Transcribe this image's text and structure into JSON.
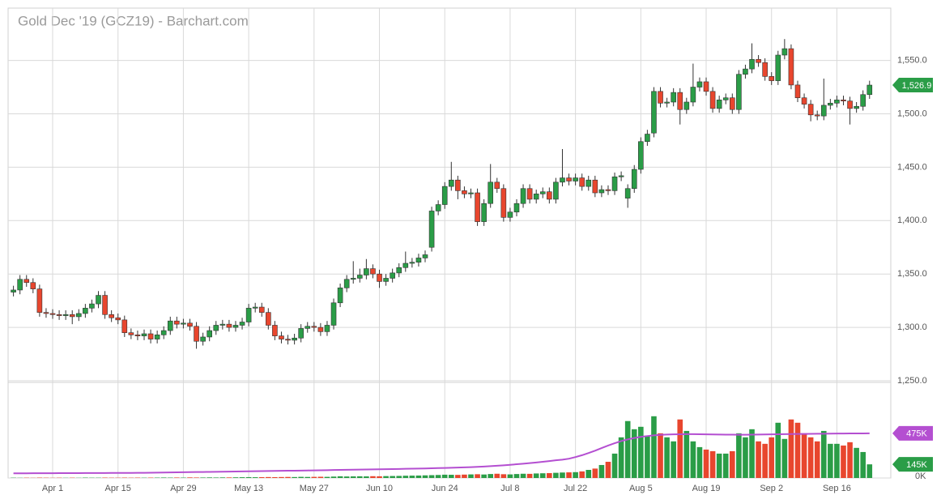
{
  "chart_data": {
    "type": "candlestick",
    "title": "Gold Dec '19 (GCZ19) - Barchart.com",
    "categories": [
      null,
      null,
      null,
      null,
      null,
      null,
      "Apr 1",
      null,
      null,
      null,
      null,
      null,
      null,
      null,
      null,
      null,
      "Apr 15",
      null,
      null,
      null,
      null,
      null,
      null,
      null,
      null,
      null,
      "Apr 29",
      null,
      null,
      null,
      null,
      null,
      null,
      null,
      null,
      null,
      "May 13",
      null,
      null,
      null,
      null,
      null,
      null,
      null,
      null,
      null,
      "May 27",
      null,
      null,
      null,
      null,
      null,
      null,
      null,
      null,
      null,
      "Jun 10",
      null,
      null,
      null,
      null,
      null,
      null,
      null,
      null,
      null,
      "Jun 24",
      null,
      null,
      null,
      null,
      null,
      null,
      null,
      null,
      null,
      "Jul 8",
      null,
      null,
      null,
      null,
      null,
      null,
      null,
      null,
      null,
      "Jul 22",
      null,
      null,
      null,
      null,
      null,
      null,
      null,
      null,
      null,
      "Aug 5",
      null,
      null,
      null,
      null,
      null,
      null,
      null,
      null,
      null,
      "Aug 19",
      null,
      null,
      null,
      null,
      null,
      null,
      null,
      null,
      null,
      "Sep 2",
      null,
      null,
      null,
      null,
      null,
      null,
      null,
      null,
      null,
      "Sep 16",
      null,
      null,
      null,
      null,
      null
    ],
    "open": [
      1333,
      1335,
      1345,
      1342,
      1336,
      1314,
      1313,
      1312,
      1311,
      1312,
      1310,
      1313,
      1318,
      1322,
      1330,
      1312,
      1309,
      1307,
      1295,
      1293,
      1292,
      1294,
      1289,
      1293,
      1297,
      1306,
      1303,
      1304,
      1301,
      1287,
      1291,
      1297,
      1302,
      1303,
      1300,
      1302,
      1305,
      1318,
      1319,
      1314,
      1302,
      1292,
      1289,
      1288,
      1290,
      1299,
      1301,
      1300,
      1296,
      1302,
      1323,
      1337,
      1345,
      1346,
      1349,
      1355,
      1350,
      1343,
      1346,
      1351,
      1356,
      1360,
      1361,
      1365,
      1375,
      1409,
      1415,
      1432,
      1438,
      1428,
      1425,
      1426,
      1399,
      1416,
      1436,
      1430,
      1403,
      1408,
      1416,
      1430,
      1420,
      1425,
      1427,
      1420,
      1436,
      1440,
      1437,
      1440,
      1432,
      1438,
      1426,
      1429,
      1428,
      1441,
      1421,
      1430,
      1448,
      1474,
      1482,
      1521,
      1510,
      1511,
      1520,
      1504,
      1511,
      1525,
      1530,
      1521,
      1505,
      1513,
      1515,
      1504,
      1537,
      1542,
      1551,
      1548,
      1535,
      1531,
      1555,
      1561,
      1527,
      1515,
      1509,
      1499,
      1498,
      1508,
      1510,
      1513,
      1512,
      1505,
      1507,
      1518
    ],
    "high": [
      1339,
      1349,
      1349,
      1346,
      1340,
      1318,
      1317,
      1316,
      1316,
      1316,
      1317,
      1322,
      1326,
      1334,
      1334,
      1316,
      1313,
      1311,
      1299,
      1297,
      1298,
      1298,
      1297,
      1301,
      1310,
      1310,
      1308,
      1308,
      1305,
      1295,
      1301,
      1306,
      1307,
      1307,
      1306,
      1309,
      1322,
      1323,
      1323,
      1318,
      1306,
      1296,
      1293,
      1294,
      1303,
      1305,
      1305,
      1304,
      1306,
      1327,
      1341,
      1349,
      1362,
      1355,
      1364,
      1359,
      1354,
      1350,
      1355,
      1360,
      1371,
      1365,
      1369,
      1372,
      1413,
      1419,
      1436,
      1455,
      1442,
      1432,
      1430,
      1430,
      1420,
      1453,
      1440,
      1434,
      1412,
      1420,
      1434,
      1434,
      1429,
      1431,
      1431,
      1440,
      1467,
      1444,
      1444,
      1444,
      1442,
      1442,
      1433,
      1433,
      1445,
      1446,
      1434,
      1452,
      1478,
      1485,
      1525,
      1525,
      1515,
      1524,
      1524,
      1515,
      1547,
      1534,
      1534,
      1525,
      1517,
      1519,
      1519,
      1541,
      1546,
      1566,
      1555,
      1552,
      1539,
      1559,
      1570,
      1565,
      1531,
      1519,
      1513,
      1503,
      1533,
      1514,
      1517,
      1517,
      1516,
      1511,
      1522,
      1531
    ],
    "low": [
      1329,
      1331,
      1338,
      1332,
      1310,
      1309,
      1308,
      1307,
      1307,
      1303,
      1306,
      1309,
      1314,
      1318,
      1308,
      1305,
      1303,
      1291,
      1289,
      1288,
      1288,
      1285,
      1285,
      1289,
      1293,
      1299,
      1299,
      1297,
      1280,
      1283,
      1287,
      1293,
      1298,
      1296,
      1296,
      1298,
      1301,
      1314,
      1310,
      1298,
      1288,
      1285,
      1284,
      1284,
      1286,
      1295,
      1296,
      1292,
      1292,
      1298,
      1319,
      1333,
      1341,
      1342,
      1345,
      1346,
      1337,
      1339,
      1342,
      1347,
      1352,
      1356,
      1357,
      1361,
      1371,
      1405,
      1411,
      1428,
      1420,
      1421,
      1421,
      1395,
      1395,
      1412,
      1426,
      1399,
      1399,
      1404,
      1412,
      1416,
      1416,
      1421,
      1416,
      1416,
      1432,
      1433,
      1433,
      1428,
      1428,
      1422,
      1422,
      1424,
      1424,
      1437,
      1412,
      1426,
      1444,
      1470,
      1478,
      1506,
      1506,
      1507,
      1490,
      1500,
      1507,
      1521,
      1517,
      1501,
      1501,
      1509,
      1500,
      1500,
      1533,
      1538,
      1544,
      1531,
      1527,
      1527,
      1551,
      1523,
      1511,
      1505,
      1493,
      1494,
      1494,
      1504,
      1506,
      1508,
      1490,
      1501,
      1503,
      1514
    ],
    "close": [
      1335,
      1345,
      1342,
      1336,
      1314,
      1313,
      1312,
      1311,
      1312,
      1310,
      1313,
      1318,
      1322,
      1330,
      1312,
      1309,
      1307,
      1295,
      1293,
      1292,
      1294,
      1289,
      1293,
      1297,
      1306,
      1303,
      1304,
      1301,
      1287,
      1291,
      1297,
      1302,
      1303,
      1300,
      1302,
      1305,
      1318,
      1319,
      1314,
      1302,
      1292,
      1289,
      1288,
      1290,
      1299,
      1301,
      1300,
      1296,
      1302,
      1323,
      1337,
      1345,
      1346,
      1349,
      1355,
      1350,
      1343,
      1346,
      1351,
      1356,
      1360,
      1361,
      1365,
      1368,
      1409,
      1415,
      1432,
      1438,
      1428,
      1425,
      1426,
      1399,
      1416,
      1436,
      1430,
      1403,
      1408,
      1416,
      1430,
      1420,
      1425,
      1427,
      1420,
      1436,
      1440,
      1437,
      1440,
      1432,
      1438,
      1426,
      1429,
      1428,
      1441,
      1442,
      1430,
      1448,
      1474,
      1481,
      1521,
      1510,
      1511,
      1520,
      1504,
      1511,
      1525,
      1530,
      1521,
      1505,
      1513,
      1515,
      1504,
      1537,
      1542,
      1551,
      1548,
      1535,
      1531,
      1555,
      1561,
      1527,
      1515,
      1509,
      1499,
      1498,
      1508,
      1510,
      1513,
      1512,
      1505,
      1507,
      1518,
      1526.9
    ],
    "up_color": "#2a9d47",
    "down_color": "#e8462e",
    "ylim": [
      1250,
      1599
    ],
    "yticks": [
      {
        "value": 1250,
        "label": "1,250.0"
      },
      {
        "value": 1300,
        "label": "1,300.0"
      },
      {
        "value": 1350,
        "label": "1,350.0"
      },
      {
        "value": 1400,
        "label": "1,400.0"
      },
      {
        "value": 1450,
        "label": "1,450.0"
      },
      {
        "value": 1500,
        "label": "1,500.0"
      },
      {
        "value": 1550,
        "label": "1,550.0"
      }
    ],
    "grid": true,
    "price_flag": {
      "value": 1526.9,
      "label": "1,526.9",
      "color": "#2a9d47"
    },
    "volume": {
      "values": [
        3,
        2,
        3,
        2,
        4,
        3,
        2,
        3,
        2,
        3,
        2,
        4,
        3,
        3,
        4,
        3,
        3,
        4,
        3,
        4,
        3,
        4,
        4,
        5,
        4,
        5,
        4,
        6,
        5,
        5,
        6,
        5,
        6,
        6,
        7,
        8,
        9,
        8,
        9,
        10,
        9,
        10,
        11,
        10,
        12,
        11,
        12,
        13,
        12,
        15,
        18,
        16,
        17,
        18,
        17,
        19,
        18,
        20,
        21,
        22,
        24,
        25,
        26,
        28,
        30,
        32,
        35,
        34,
        33,
        36,
        38,
        40,
        37,
        42,
        45,
        40,
        38,
        42,
        45,
        44,
        48,
        50,
        52,
        55,
        58,
        60,
        62,
        70,
        86,
        100,
        138,
        172,
        259,
        432,
        605,
        518,
        544,
        450,
        656,
        475,
        432,
        389,
        622,
        500,
        389,
        328,
        302,
        285,
        259,
        259,
        285,
        475,
        432,
        518,
        389,
        363,
        432,
        587,
        415,
        622,
        587,
        475,
        432,
        389,
        500,
        363,
        363,
        345,
        380,
        320,
        276,
        145
      ],
      "ylim": [
        0,
        990
      ],
      "yticks": [
        {
          "value": 0,
          "label": "0K"
        }
      ],
      "ma_color": "#b44fd1",
      "ma": [
        50,
        50,
        50,
        51,
        51,
        51,
        51,
        52,
        52,
        52,
        52,
        53,
        53,
        53,
        53,
        54,
        54,
        54,
        54,
        55,
        55,
        56,
        57,
        58,
        59,
        60,
        61,
        62,
        63,
        64,
        65,
        66,
        67,
        68,
        69,
        70,
        71,
        72,
        73,
        74,
        75,
        76,
        77,
        78,
        79,
        80,
        81,
        82,
        83,
        85,
        86,
        87,
        88,
        89,
        90,
        92,
        93,
        94,
        95,
        96,
        98,
        99,
        100,
        101,
        103,
        105,
        107,
        109,
        111,
        113,
        115,
        118,
        122,
        126,
        130,
        135,
        140,
        146,
        152,
        158,
        165,
        172,
        180,
        188,
        195,
        205,
        222,
        242,
        265,
        290,
        318,
        345,
        370,
        392,
        410,
        425,
        437,
        446,
        453,
        458,
        462,
        464,
        465,
        466,
        466,
        465,
        464,
        463,
        462,
        461,
        461,
        460,
        460,
        461,
        462,
        463,
        464,
        465,
        466,
        467,
        468,
        468,
        469,
        470,
        470,
        471,
        472,
        472,
        473,
        474,
        474,
        475
      ],
      "flags": [
        {
          "value": 475,
          "label": "475K",
          "color": "#b44fd1"
        },
        {
          "value": 145,
          "label": "145K",
          "color": "#2a9d47"
        }
      ]
    }
  }
}
